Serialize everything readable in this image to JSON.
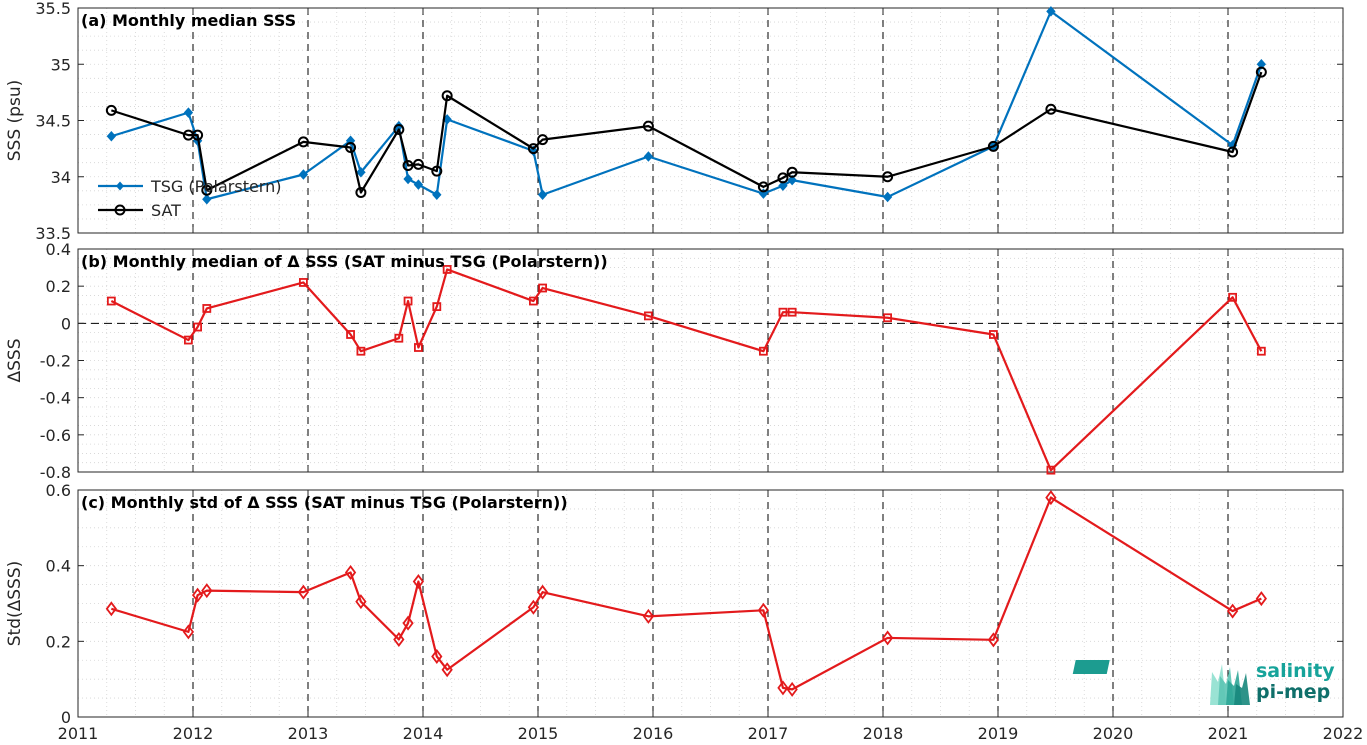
{
  "colors": {
    "tsg": "#0072BD",
    "sat": "#000000",
    "delta": "#E31A1C"
  },
  "logo": {
    "line1": "salinity",
    "line2": "pi-mep"
  },
  "chart_data": [
    {
      "type": "line",
      "title": "(a) Monthly median SSS",
      "ylabel": "SSS (psu)",
      "xlim": [
        2011,
        2022
      ],
      "ylim": [
        33.5,
        35.5
      ],
      "yticks": [
        "33.5",
        "34",
        "34.5",
        "35",
        "35.5"
      ],
      "grid": true,
      "legend_position": "middle-left",
      "series": [
        {
          "name": "TSG (Polarstern)",
          "marker": "filled-diamond",
          "x": [
            2011.29,
            2011.96,
            2012.04,
            2012.12,
            2012.96,
            2013.37,
            2013.46,
            2013.79,
            2013.87,
            2013.96,
            2014.12,
            2014.21,
            2014.96,
            2015.04,
            2015.96,
            2016.96,
            2017.13,
            2017.21,
            2018.04,
            2018.96,
            2019.46,
            2021.04,
            2021.29
          ],
          "y": [
            34.36,
            34.57,
            34.32,
            33.8,
            34.02,
            34.32,
            34.04,
            34.45,
            33.98,
            33.93,
            33.84,
            34.51,
            34.23,
            33.84,
            34.18,
            33.85,
            33.92,
            33.97,
            33.82,
            34.27,
            35.47,
            34.28,
            35.0
          ]
        },
        {
          "name": "SAT",
          "marker": "open-circle",
          "x": [
            2011.29,
            2011.96,
            2012.04,
            2012.12,
            2012.96,
            2013.37,
            2013.46,
            2013.79,
            2013.87,
            2013.96,
            2014.12,
            2014.21,
            2014.96,
            2015.04,
            2015.96,
            2016.96,
            2017.13,
            2017.21,
            2018.04,
            2018.96,
            2019.46,
            2021.04,
            2021.29
          ],
          "y": [
            34.59,
            34.37,
            34.37,
            33.88,
            34.31,
            34.26,
            33.86,
            34.42,
            34.1,
            34.11,
            34.05,
            34.72,
            34.25,
            34.33,
            34.45,
            33.91,
            33.99,
            34.04,
            34.0,
            34.27,
            34.6,
            34.22,
            34.93
          ]
        }
      ]
    },
    {
      "type": "line",
      "title": "(b) Monthly median of Δ SSS (SAT minus TSG (Polarstern))",
      "ylabel": "ΔSSS",
      "xlim": [
        2011,
        2022
      ],
      "ylim": [
        -0.8,
        0.4
      ],
      "yticks": [
        "-0.8",
        "-0.6",
        "-0.4",
        "-0.2",
        "0",
        "0.2",
        "0.4"
      ],
      "zero_line": true,
      "grid": true,
      "series": [
        {
          "marker": "open-square",
          "x": [
            2011.29,
            2011.96,
            2012.04,
            2012.12,
            2012.96,
            2013.37,
            2013.46,
            2013.79,
            2013.87,
            2013.96,
            2014.12,
            2014.21,
            2014.96,
            2015.04,
            2015.96,
            2016.96,
            2017.13,
            2017.21,
            2018.04,
            2018.96,
            2019.46,
            2021.04,
            2021.29
          ],
          "y": [
            0.12,
            -0.09,
            -0.02,
            0.08,
            0.22,
            -0.06,
            -0.15,
            -0.08,
            0.12,
            -0.13,
            0.09,
            0.29,
            0.12,
            0.19,
            0.04,
            -0.15,
            0.06,
            0.06,
            0.03,
            -0.06,
            -0.79,
            0.14,
            -0.15
          ]
        }
      ]
    },
    {
      "type": "line",
      "title": "(c) Monthly std of Δ SSS (SAT minus TSG (Polarstern))",
      "ylabel": "Std(ΔSSS)",
      "xlabel_ticks": [
        "2011",
        "2012",
        "2013",
        "2014",
        "2015",
        "2016",
        "2017",
        "2018",
        "2019",
        "2020",
        "2021",
        "2022"
      ],
      "xlim": [
        2011,
        2022
      ],
      "ylim": [
        0,
        0.6
      ],
      "yticks": [
        "0",
        "0.2",
        "0.4",
        "0.6"
      ],
      "grid": true,
      "series": [
        {
          "marker": "open-diamond",
          "x": [
            2011.29,
            2011.96,
            2012.04,
            2012.12,
            2012.96,
            2013.37,
            2013.46,
            2013.79,
            2013.87,
            2013.96,
            2014.12,
            2014.21,
            2014.96,
            2015.04,
            2015.96,
            2016.96,
            2017.13,
            2017.21,
            2018.04,
            2018.96,
            2019.46,
            2021.04,
            2021.29
          ],
          "y": [
            0.286,
            0.225,
            0.322,
            0.334,
            0.33,
            0.382,
            0.305,
            0.205,
            0.248,
            0.358,
            0.16,
            0.125,
            0.29,
            0.33,
            0.266,
            0.282,
            0.077,
            0.073,
            0.209,
            0.204,
            0.58,
            0.28,
            0.313
          ]
        }
      ]
    }
  ]
}
